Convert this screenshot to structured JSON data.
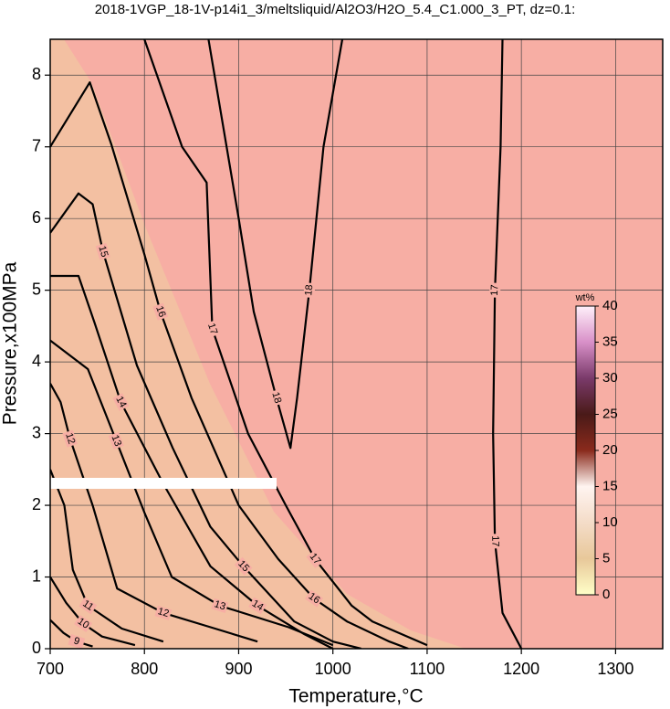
{
  "chart_data": {
    "type": "contour",
    "title": "2018-1VGP_18-1V-p14i1_3/meltsliquid/Al2O3/H2O_5.4_C1.000_3_PT, dz=0.1:",
    "xlabel": "Temperature,°C",
    "ylabel": "Pressure,x100MPa",
    "xlim": [
      700,
      1350
    ],
    "ylim": [
      0,
      8.5
    ],
    "xticks": [
      700,
      800,
      900,
      1000,
      1100,
      1200,
      1300
    ],
    "yticks": [
      0,
      1,
      2,
      3,
      4,
      5,
      6,
      7,
      8
    ],
    "grid": true,
    "line_color": "#000000",
    "background_color": "#f7aea4",
    "contours": [
      {
        "level": 17,
        "x": [
          1200,
          1180,
          1172,
          1170,
          1172,
          1178,
          1180
        ],
        "y": [
          0,
          0.5,
          1.5,
          3,
          5,
          7,
          8.5
        ]
      },
      {
        "level": 18,
        "x": [
          868,
          900,
          916,
          940,
          955,
          962,
          975,
          990,
          1010
        ],
        "y": [
          8.5,
          6,
          4.7,
          3.5,
          2.8,
          3.5,
          5,
          7,
          8.5
        ]
      },
      {
        "level": 17,
        "x": [
          800,
          840,
          866,
          872,
          910,
          950,
          981,
          1020,
          1042,
          1100
        ],
        "y": [
          8.5,
          7,
          6.5,
          4.46,
          3,
          2,
          1.25,
          0.6,
          0.38,
          0.05
        ]
      },
      {
        "level": 16,
        "x": [
          700,
          742,
          765,
          800,
          817,
          850,
          900,
          942,
          980,
          1015,
          1060,
          1080
        ],
        "y": [
          7,
          7.9,
          7.03,
          5.5,
          4.7,
          3.5,
          2,
          1.25,
          0.7,
          0.38,
          0.1,
          0
        ]
      },
      {
        "level": 15,
        "x": [
          700,
          730,
          745,
          756,
          792,
          830,
          870,
          905,
          959,
          1000,
          1030
        ],
        "y": [
          5.8,
          6.35,
          6.2,
          5.54,
          3.95,
          2.8,
          1.7,
          1.15,
          0.38,
          0.1,
          0
        ]
      },
      {
        "level": 14,
        "x": [
          700,
          730,
          747,
          775,
          820,
          870,
          920,
          970,
          1000
        ],
        "y": [
          5.2,
          5.2,
          4.55,
          3.44,
          2.3,
          1.15,
          0.6,
          0.2,
          0
        ]
      },
      {
        "level": 13,
        "x": [
          700,
          740,
          770,
          800,
          829,
          880,
          953,
          1000
        ],
        "y": [
          4.3,
          3.9,
          2.9,
          1.9,
          1,
          0.6,
          0.3,
          0.05
        ]
      },
      {
        "level": 12,
        "x": [
          700,
          711,
          721,
          745,
          771,
          820,
          875,
          920
        ],
        "y": [
          3.7,
          3.44,
          2.93,
          2,
          0.84,
          0.5,
          0.28,
          0.1
        ]
      },
      {
        "level": 11,
        "x": [
          700,
          715,
          724,
          740,
          776,
          820
        ],
        "y": [
          2.5,
          2,
          1.1,
          0.6,
          0.28,
          0.1
        ]
      },
      {
        "level": 10,
        "x": [
          700,
          717,
          735,
          755,
          790
        ],
        "y": [
          1,
          0.64,
          0.35,
          0.17,
          0.05
        ]
      },
      {
        "level": 9,
        "x": [
          700,
          714,
          728,
          745
        ],
        "y": [
          0.4,
          0.22,
          0.1,
          0.03
        ]
      }
    ],
    "colorbar": {
      "label": "wt%",
      "lim": [
        0,
        40
      ],
      "ticks": [
        0,
        5,
        10,
        15,
        20,
        25,
        30,
        35,
        40
      ],
      "colors": [
        "#ffffc8",
        "#e8c89a",
        "#f4dcc8",
        "#fff4f0",
        "#8a2a1c",
        "#4a1a18",
        "#7a3a6a",
        "#d890c8",
        "#fff0fa"
      ]
    }
  }
}
